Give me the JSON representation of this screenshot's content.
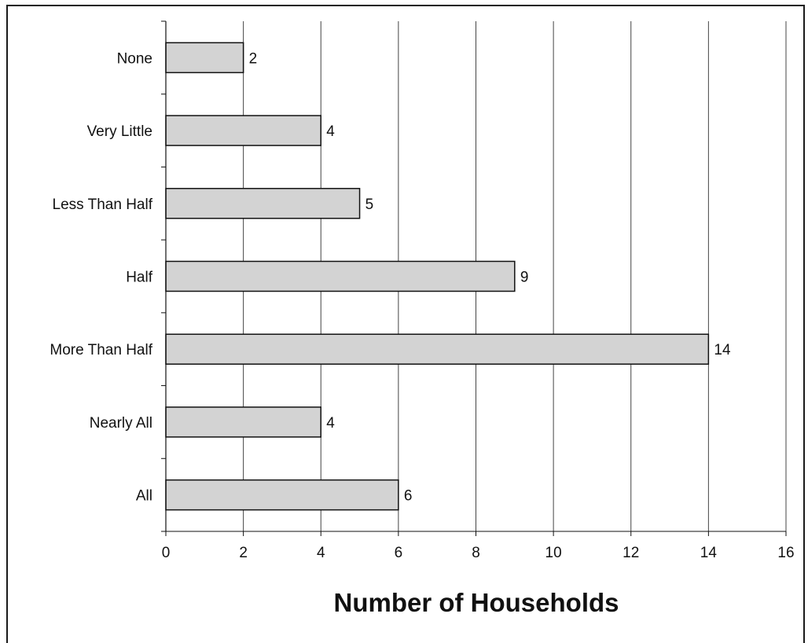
{
  "chart_data": {
    "type": "bar",
    "orientation": "horizontal",
    "categories": [
      "None",
      "Very Little",
      "Less Than Half",
      "Half",
      "More Than Half",
      "Nearly All",
      "All"
    ],
    "values": [
      2,
      4,
      5,
      9,
      14,
      4,
      6
    ],
    "data_labels": [
      "2",
      "4",
      "5",
      "9",
      "14",
      "4",
      "6"
    ],
    "xlabel": "Number of Households",
    "ylabel": "",
    "xlim": [
      0,
      16
    ],
    "x_ticks": [
      "0",
      "2",
      "4",
      "6",
      "8",
      "10",
      "12",
      "14",
      "16"
    ],
    "grid": "vertical",
    "legend": "none",
    "colors": {
      "bar_fill": "#d3d3d3",
      "bar_stroke": "#111111",
      "grid": "#444444"
    }
  }
}
